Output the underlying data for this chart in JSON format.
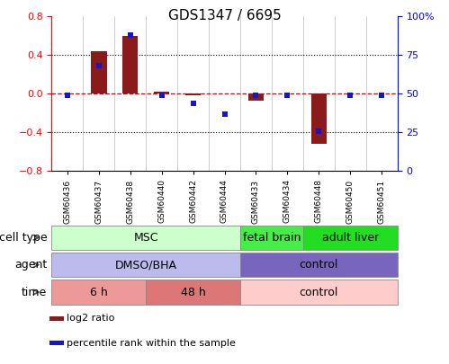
{
  "title": "GDS1347 / 6695",
  "samples": [
    "GSM60436",
    "GSM60437",
    "GSM60438",
    "GSM60440",
    "GSM60442",
    "GSM60444",
    "GSM60433",
    "GSM60434",
    "GSM60448",
    "GSM60450",
    "GSM60451"
  ],
  "log2_ratio": [
    0.0,
    0.44,
    0.6,
    0.02,
    -0.02,
    0.0,
    -0.07,
    0.0,
    -0.52,
    0.0,
    0.0
  ],
  "percentile_rank": [
    49,
    68,
    88,
    49,
    44,
    37,
    49,
    49,
    26,
    49,
    49
  ],
  "ylim_left": [
    -0.8,
    0.8
  ],
  "ylim_right": [
    0,
    100
  ],
  "yticks_left": [
    -0.8,
    -0.4,
    0.0,
    0.4,
    0.8
  ],
  "yticks_right": [
    0,
    25,
    50,
    75,
    100
  ],
  "bar_color": "#8B1A1A",
  "dot_color": "#1515CC",
  "hline_color": "#CC0000",
  "dot_grid_color": "#000000",
  "cell_type_rows": [
    {
      "label": "MSC",
      "start": 0,
      "end": 5,
      "facecolor": "#CCFFCC",
      "edgecolor": "#888888"
    },
    {
      "label": "fetal brain",
      "start": 6,
      "end": 7,
      "facecolor": "#44EE44",
      "edgecolor": "#888888"
    },
    {
      "label": "adult liver",
      "start": 8,
      "end": 10,
      "facecolor": "#22DD22",
      "edgecolor": "#888888"
    }
  ],
  "agent_rows": [
    {
      "label": "DMSO/BHA",
      "start": 0,
      "end": 5,
      "facecolor": "#BBBBEE",
      "edgecolor": "#888888"
    },
    {
      "label": "control",
      "start": 6,
      "end": 10,
      "facecolor": "#7766BB",
      "edgecolor": "#888888"
    }
  ],
  "time_rows": [
    {
      "label": "6 h",
      "start": 0,
      "end": 2,
      "facecolor": "#EE9999",
      "edgecolor": "#888888"
    },
    {
      "label": "48 h",
      "start": 3,
      "end": 5,
      "facecolor": "#DD7777",
      "edgecolor": "#888888"
    },
    {
      "label": "control",
      "start": 6,
      "end": 10,
      "facecolor": "#FFCCCC",
      "edgecolor": "#888888"
    }
  ],
  "row_labels": [
    "cell type",
    "agent",
    "time"
  ],
  "legend_items": [
    {
      "label": "log2 ratio",
      "color": "#8B1A1A"
    },
    {
      "label": "percentile rank within the sample",
      "color": "#1515CC"
    }
  ],
  "title_fontsize": 11,
  "tick_fontsize": 8,
  "label_fontsize": 9,
  "ann_fontsize": 9,
  "legend_fontsize": 8
}
